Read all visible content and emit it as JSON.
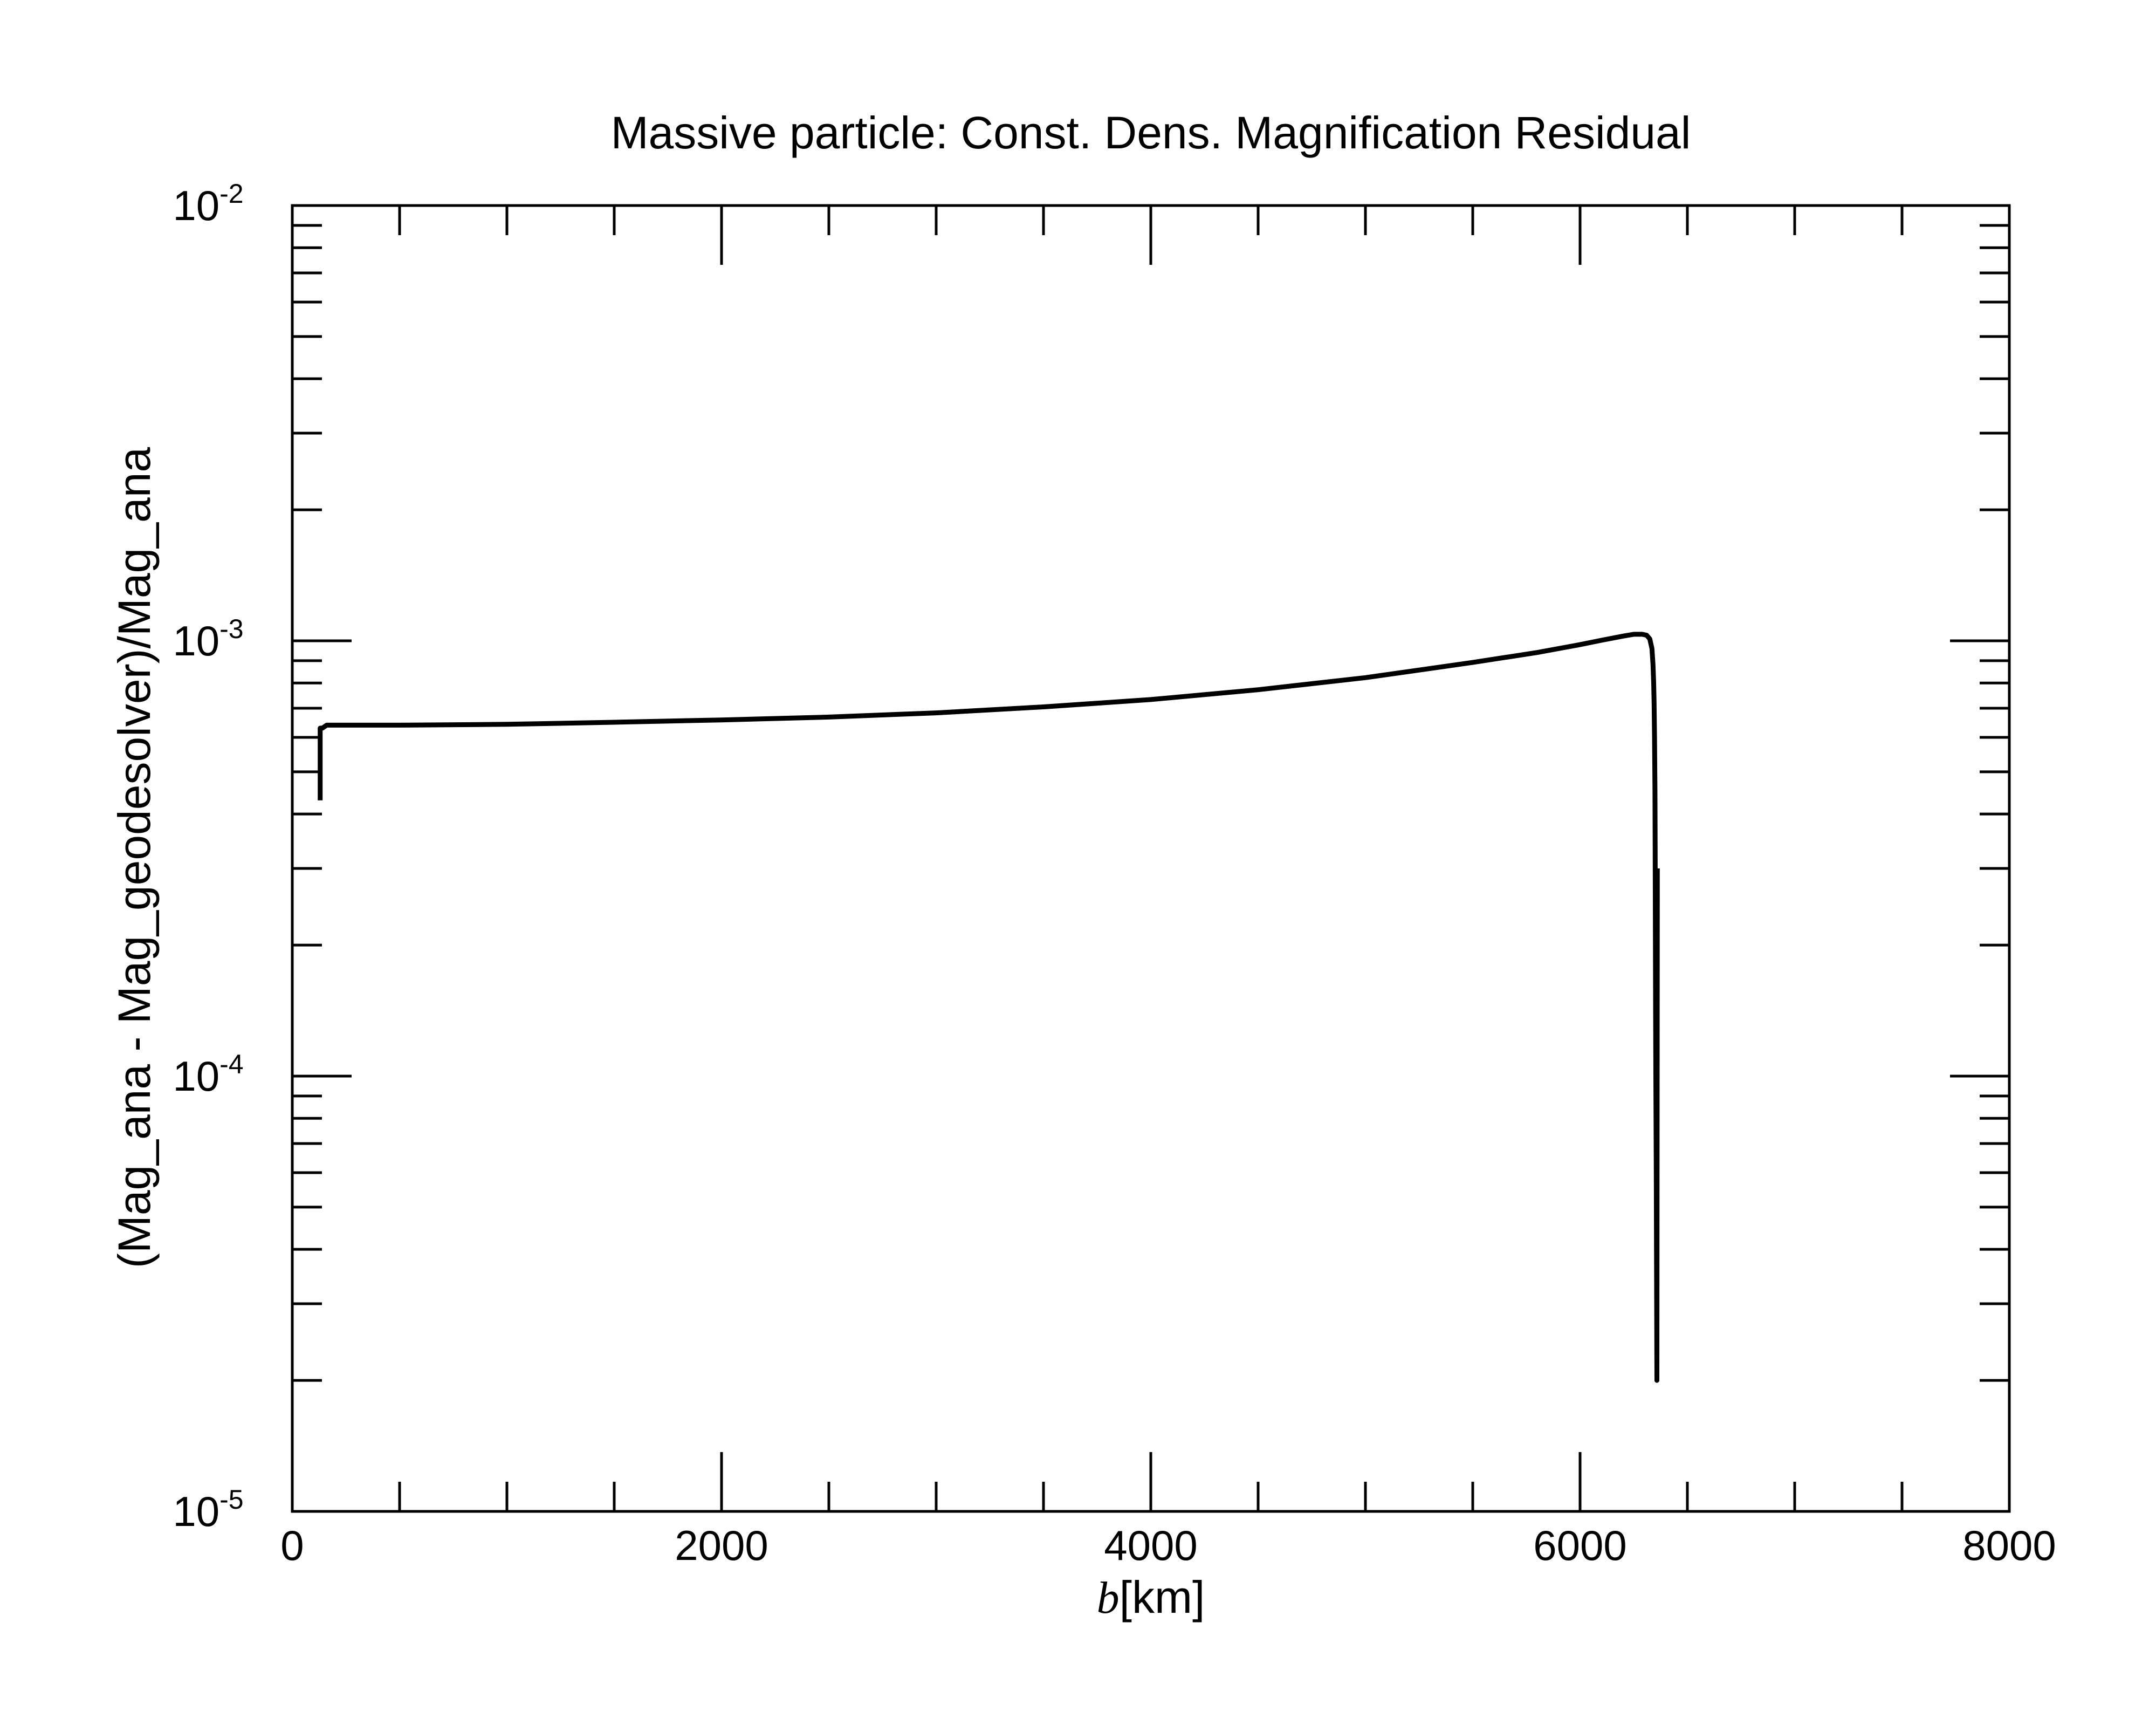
{
  "chart_data": {
    "type": "line",
    "title": "Massive particle: Const. Dens. Magnification Residual",
    "xlabel": {
      "var": "b",
      "unit": "[km]"
    },
    "ylabel": "(Mag_ana - Mag_geodesolver)/Mag_ana",
    "xlim": [
      0,
      8000
    ],
    "ylim": [
      1e-05,
      0.01
    ],
    "yscale": "log",
    "grid": false,
    "legend": "none",
    "x_ticks": [
      {
        "value": 0,
        "label": "0"
      },
      {
        "value": 2000,
        "label": "2000"
      },
      {
        "value": 4000,
        "label": "4000"
      },
      {
        "value": 6000,
        "label": "6000"
      },
      {
        "value": 8000,
        "label": "8000"
      }
    ],
    "x_minor_step": 500,
    "y_ticks": [
      {
        "value": 1e-05,
        "base": "10",
        "exp": "-5"
      },
      {
        "value": 0.0001,
        "base": "10",
        "exp": "-4"
      },
      {
        "value": 0.001,
        "base": "10",
        "exp": "-3"
      },
      {
        "value": 0.01,
        "base": "10",
        "exp": "-2"
      }
    ],
    "series": [
      {
        "color": "#000000",
        "x": [
          130,
          130,
          135,
          140,
          160,
          200,
          500,
          1000,
          1500,
          2000,
          2500,
          3000,
          3500,
          4000,
          4500,
          5000,
          5500,
          5800,
          6000,
          6100,
          6200,
          6250,
          6290,
          6310,
          6325,
          6335,
          6340,
          6343,
          6345,
          6347,
          6349,
          6350,
          6352,
          6353,
          6355,
          6358,
          6360
        ],
        "y": [
          0.00043,
          0.00063,
          0.00063,
          0.00063,
          0.00064,
          0.00064,
          0.00064,
          0.000643,
          0.00065,
          0.000658,
          0.000668,
          0.000683,
          0.000705,
          0.000733,
          0.000772,
          0.000823,
          0.000892,
          0.00094,
          0.00098,
          0.001003,
          0.001025,
          0.001035,
          0.001035,
          0.00103,
          0.00101,
          0.00096,
          0.00088,
          0.0008,
          0.00072,
          0.0006,
          0.00045,
          0.00032,
          0.00014,
          0.0001,
          6e-05,
          2e-05,
          0.0003
        ]
      }
    ]
  }
}
